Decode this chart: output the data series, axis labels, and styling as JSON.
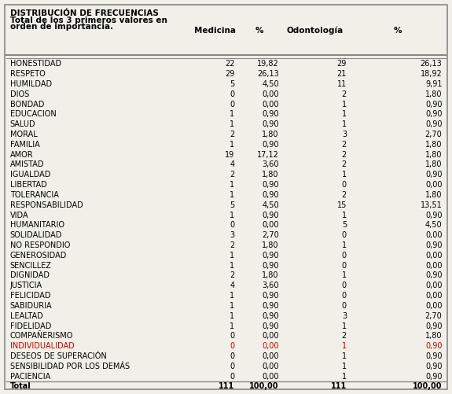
{
  "title_line1": "DISTRIBUCIÓN DE FRECUENCIAS",
  "title_line2": "Total de los 3 primeros valores en",
  "title_line3": "orden de importancia.",
  "col_headers": [
    "Medicina",
    "%",
    "Odontología",
    "%"
  ],
  "rows": [
    [
      "HONESTIDAD",
      "22",
      "19,82",
      "29",
      "26,13"
    ],
    [
      "RESPETO",
      "29",
      "26,13",
      "21",
      "18,92"
    ],
    [
      "HUMILDAD",
      "5",
      "4,50",
      "11",
      "9,91"
    ],
    [
      "DIOS",
      "0",
      "0,00",
      "2",
      "1,80"
    ],
    [
      "BONDAD",
      "0",
      "0,00",
      "1",
      "0,90"
    ],
    [
      "EDUCACION",
      "1",
      "0,90",
      "1",
      "0,90"
    ],
    [
      "SALUD",
      "1",
      "0,90",
      "1",
      "0,90"
    ],
    [
      "MORAL",
      "2",
      "1,80",
      "3",
      "2,70"
    ],
    [
      "FAMILIA",
      "1",
      "0,90",
      "2",
      "1,80"
    ],
    [
      "AMOR",
      "19",
      "17,12",
      "2",
      "1,80"
    ],
    [
      "AMISTAD",
      "4",
      "3,60",
      "2",
      "1,80"
    ],
    [
      "IGUALDAD",
      "2",
      "1,80",
      "1",
      "0,90"
    ],
    [
      "LIBERTAD",
      "1",
      "0,90",
      "0",
      "0,00"
    ],
    [
      "TOLERANCIA",
      "1",
      "0,90",
      "2",
      "1,80"
    ],
    [
      "RESPONSABILIDAD",
      "5",
      "4,50",
      "15",
      "13,51"
    ],
    [
      "VIDA",
      "1",
      "0,90",
      "1",
      "0,90"
    ],
    [
      "HUMANITARIO",
      "0",
      "0,00",
      "5",
      "4,50"
    ],
    [
      "SOLIDALIDAD",
      "3",
      "2,70",
      "0",
      "0,00"
    ],
    [
      "NO RESPONDIO",
      "2",
      "1,80",
      "1",
      "0,90"
    ],
    [
      "GENEROSIDAD",
      "1",
      "0,90",
      "0",
      "0,00"
    ],
    [
      "SENCILLEZ",
      "1",
      "0,90",
      "0",
      "0,00"
    ],
    [
      "DIGNIDAD",
      "2",
      "1,80",
      "1",
      "0,90"
    ],
    [
      "JUSTICIA",
      "4",
      "3,60",
      "0",
      "0,00"
    ],
    [
      "FELICIDAD",
      "1",
      "0,90",
      "0",
      "0,00"
    ],
    [
      "SABIDURIA",
      "1",
      "0,90",
      "0",
      "0,00"
    ],
    [
      "LEALTAD",
      "1",
      "0,90",
      "3",
      "2,70"
    ],
    [
      "FIDELIDAD",
      "1",
      "0,90",
      "1",
      "0,90"
    ],
    [
      "COMPAÑERISMO",
      "0",
      "0,00",
      "2",
      "1,80"
    ],
    [
      "INDIVIDUALIDAD",
      "0",
      "0,00",
      "1",
      "0,90"
    ],
    [
      "DESEOS DE SUPERACIÓN",
      "0",
      "0,00",
      "1",
      "0,90"
    ],
    [
      "SENSIBILIDAD POR LOS DEMÁS",
      "0",
      "0,00",
      "1",
      "0,90"
    ],
    [
      "PACIENCIA",
      "0",
      "0,00",
      "1",
      "0,90"
    ]
  ],
  "total_row": [
    "Total",
    "111",
    "100,00",
    "111",
    "100,00"
  ],
  "individualidad_color": "#cc0000",
  "bg_color": "#f0f0e8",
  "font_size": 7.0,
  "header_font_size": 7.5,
  "border_color": "#888888"
}
